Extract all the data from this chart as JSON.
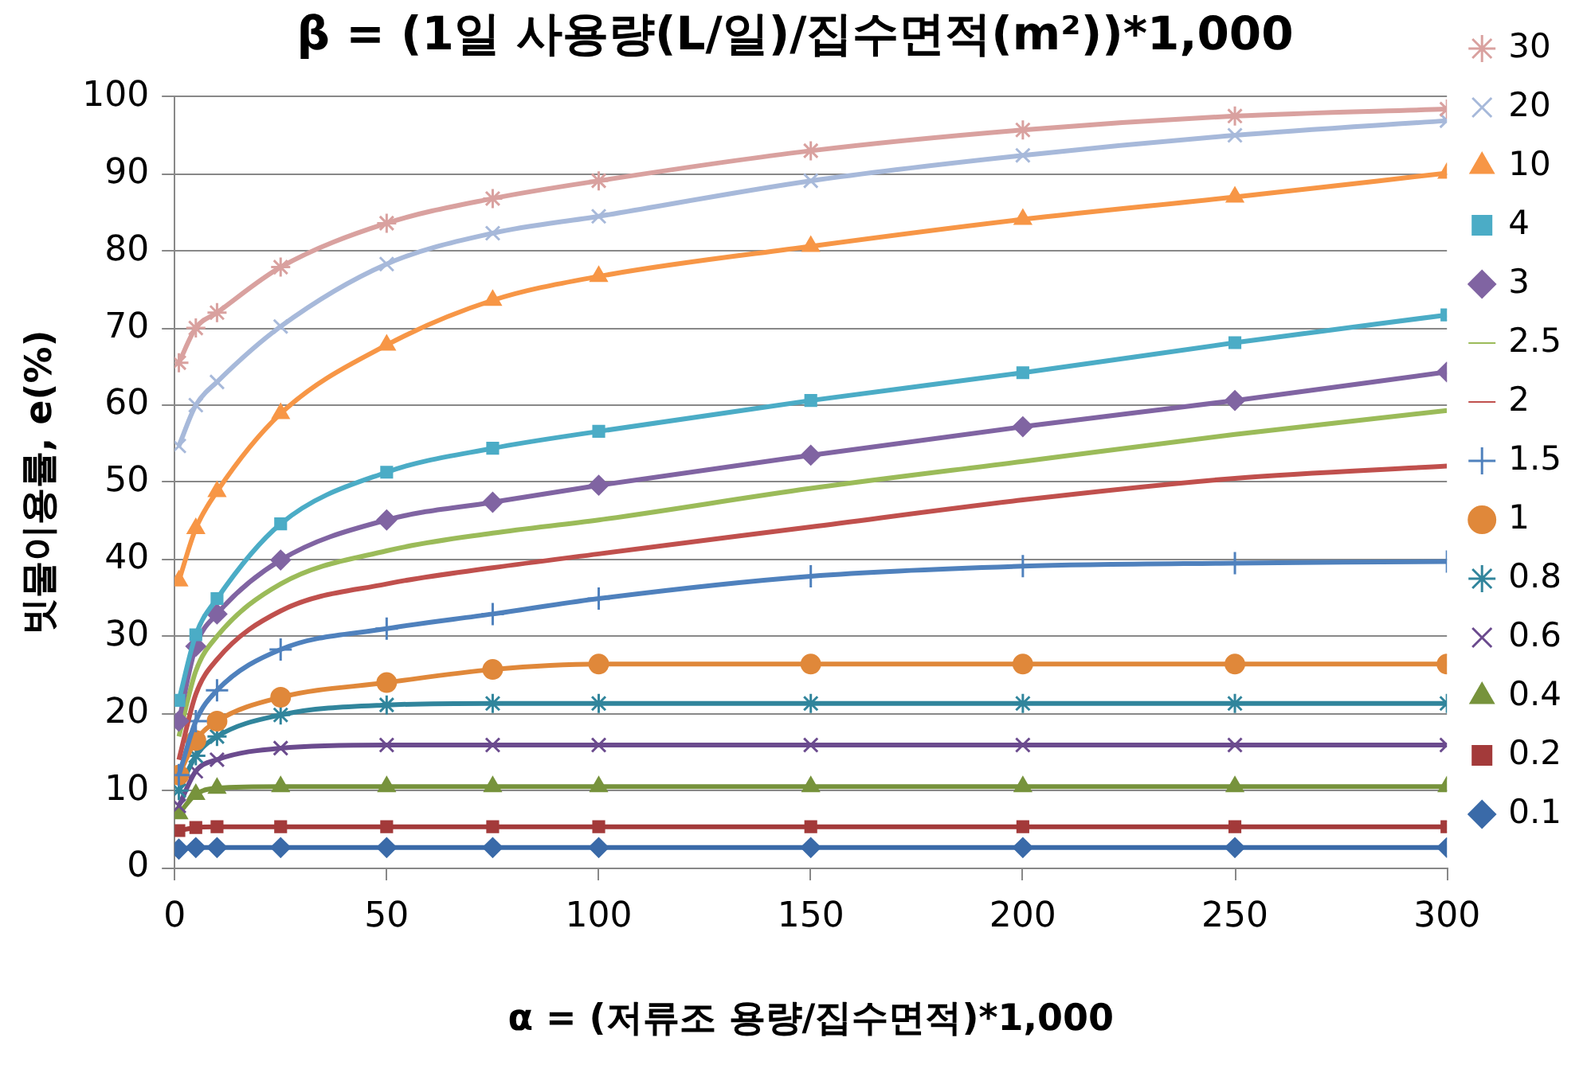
{
  "chart_data": {
    "type": "line",
    "title": "β = (1일 사용량(L/일)/집수면적(m²))*1,000",
    "xlabel": "α = (저류조 용량/집수면적)*1,000",
    "ylabel": "빗물이용률, e(%)",
    "x": [
      1,
      5,
      10,
      25,
      50,
      75,
      100,
      150,
      200,
      250,
      300
    ],
    "xlim": [
      0,
      300
    ],
    "xticks": [
      0,
      50,
      100,
      150,
      200,
      250,
      300
    ],
    "ylim": [
      0,
      100
    ],
    "yticks": [
      0,
      10,
      20,
      30,
      40,
      50,
      60,
      70,
      80,
      90,
      100
    ],
    "grid": "y",
    "legend": "right",
    "series": [
      {
        "name": "30",
        "color": "#d9a19f",
        "marker": "cross",
        "values": [
          65.5,
          70,
          72,
          77.9,
          83.6,
          86.8,
          89.1,
          93,
          95.7,
          97.5,
          98.4
        ]
      },
      {
        "name": "20",
        "color": "#a7b9da",
        "marker": "x",
        "values": [
          54.7,
          60,
          63,
          70.2,
          78.3,
          82.3,
          84.5,
          89.1,
          92.4,
          95,
          96.9
        ]
      },
      {
        "name": "10",
        "color": "#f79646",
        "marker": "triangle",
        "values": [
          37.2,
          44,
          48.8,
          58.9,
          67.8,
          73.6,
          76.7,
          80.6,
          84.1,
          87,
          90.1
        ]
      },
      {
        "name": "4",
        "color": "#4bacc6",
        "marker": "square",
        "values": [
          21.7,
          30.2,
          34.9,
          44.6,
          51.3,
          54.4,
          56.6,
          60.6,
          64.2,
          68.1,
          71.7
        ]
      },
      {
        "name": "3",
        "color": "#8064a2",
        "marker": "diamond",
        "values": [
          19,
          28.7,
          32.9,
          39.9,
          45.1,
          47.4,
          49.6,
          53.5,
          57.2,
          60.6,
          64.3
        ]
      },
      {
        "name": "2.5",
        "color": "#9bbb59",
        "marker": "none",
        "values": [
          17,
          25.5,
          30,
          36.8,
          41.1,
          43.4,
          45.1,
          49.2,
          52.7,
          56.2,
          59.3
        ]
      },
      {
        "name": "2",
        "color": "#c0504d",
        "marker": "none",
        "values": [
          14,
          22.5,
          27,
          33.3,
          36.8,
          38.9,
          40.7,
          44.2,
          47.7,
          50.5,
          52.1
        ]
      },
      {
        "name": "1.5",
        "color": "#4f81bd",
        "marker": "plus",
        "values": [
          12,
          19,
          23,
          28.3,
          31,
          32.9,
          34.9,
          37.8,
          39.1,
          39.5,
          39.7
        ]
      },
      {
        "name": "1",
        "color": "#e0883a",
        "marker": "circle",
        "values": [
          12,
          16.5,
          19,
          22.1,
          24,
          25.7,
          26.4,
          26.4,
          26.4,
          26.4,
          26.4
        ]
      },
      {
        "name": "0.8",
        "color": "#31859c",
        "marker": "cross",
        "values": [
          10,
          14.5,
          17,
          19.8,
          21.1,
          21.3,
          21.3,
          21.3,
          21.3,
          21.3,
          21.3
        ]
      },
      {
        "name": "0.6",
        "color": "#6b4b8e",
        "marker": "x",
        "values": [
          8,
          12.5,
          14,
          15.5,
          15.9,
          15.9,
          15.9,
          15.9,
          15.9,
          15.9,
          15.9
        ]
      },
      {
        "name": "0.4",
        "color": "#77933c",
        "marker": "triangle",
        "values": [
          7,
          9.5,
          10.3,
          10.5,
          10.5,
          10.5,
          10.5,
          10.5,
          10.5,
          10.5,
          10.5
        ]
      },
      {
        "name": "0.2",
        "color": "#a33a3a",
        "marker": "square",
        "values": [
          4.8,
          5.2,
          5.3,
          5.3,
          5.3,
          5.3,
          5.3,
          5.3,
          5.3,
          5.3,
          5.3
        ]
      },
      {
        "name": "0.1",
        "color": "#3a6aa8",
        "marker": "diamond",
        "values": [
          2.4,
          2.6,
          2.6,
          2.6,
          2.6,
          2.6,
          2.6,
          2.6,
          2.6,
          2.6,
          2.6
        ]
      }
    ]
  }
}
